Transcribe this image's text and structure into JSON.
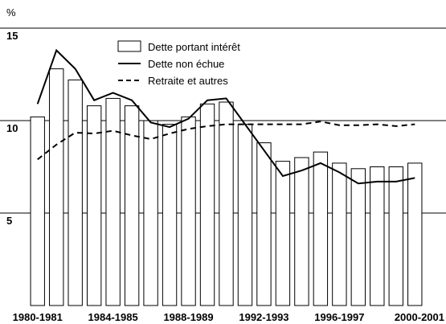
{
  "chart_data": {
    "type": "bar",
    "y_label": "%",
    "categories": [
      "1980-1981",
      null,
      null,
      null,
      "1984-1985",
      null,
      null,
      null,
      "1988-1989",
      null,
      null,
      null,
      "1992-1993",
      null,
      null,
      null,
      "1996-1997",
      null,
      null,
      null,
      "2000-2001"
    ],
    "series": [
      {
        "name": "Dette portant intérêt",
        "type": "bar",
        "color": "#ffffff",
        "values": [
          10.2,
          12.8,
          12.2,
          10.8,
          11.2,
          10.8,
          10.0,
          9.8,
          10.2,
          10.9,
          11.0,
          9.8,
          8.8,
          7.8,
          8.0,
          8.3,
          7.7,
          7.4,
          7.5,
          7.5,
          7.7
        ]
      },
      {
        "name": "Dette non échue",
        "type": "line",
        "color": "#000000",
        "values": [
          10.9,
          13.8,
          12.8,
          11.1,
          11.5,
          11.1,
          9.9,
          9.65,
          10.1,
          11.1,
          11.2,
          9.8,
          8.4,
          7.0,
          7.3,
          7.7,
          7.2,
          6.6,
          6.7,
          6.7,
          6.9
        ]
      },
      {
        "name": "Retraite et autres",
        "type": "line",
        "dashed": true,
        "color": "#000000",
        "values": [
          7.9,
          8.7,
          9.35,
          9.3,
          9.45,
          9.2,
          9.0,
          9.3,
          9.55,
          9.7,
          9.8,
          9.8,
          9.8,
          9.8,
          9.8,
          9.95,
          9.75,
          9.75,
          9.8,
          9.7,
          9.8
        ]
      }
    ],
    "ylim": [
      0,
      15
    ],
    "yticks": [
      5,
      10,
      15
    ],
    "grid": true
  }
}
